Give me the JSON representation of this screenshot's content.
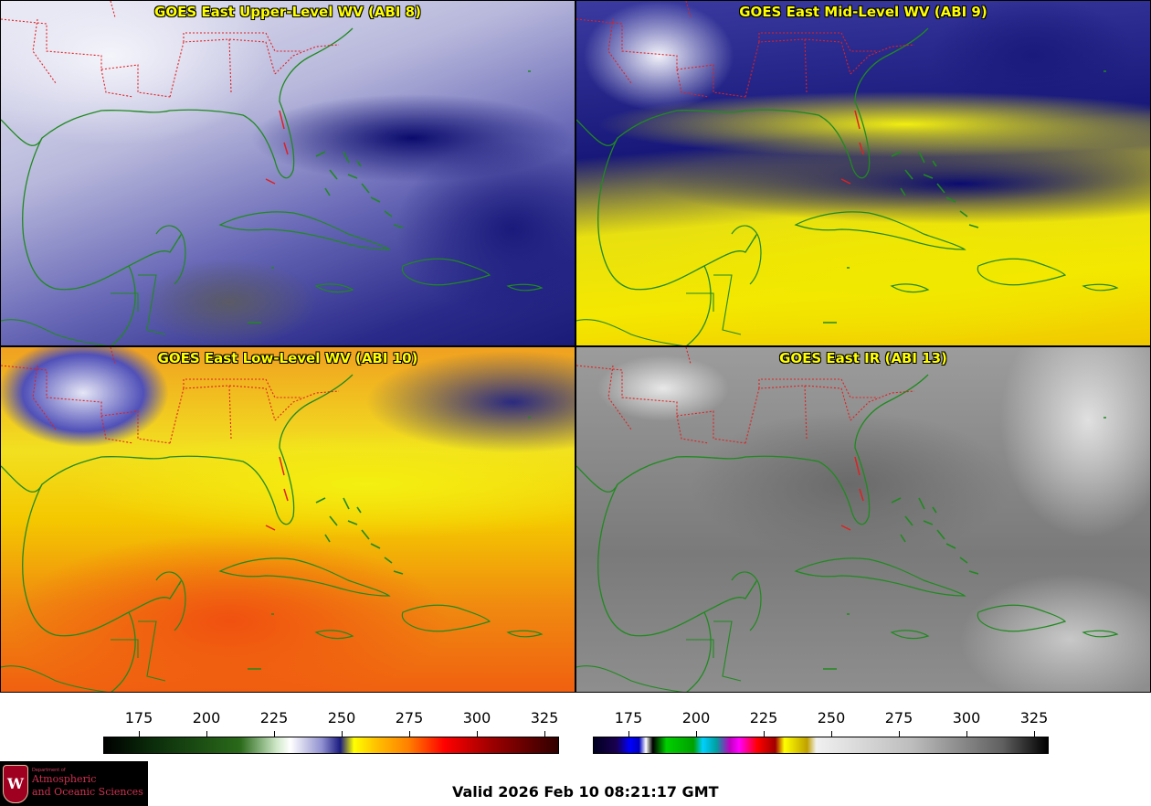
{
  "panels": [
    {
      "title": "GOES East Upper-Level WV (ABI 8)"
    },
    {
      "title": "GOES East Mid-Level WV (ABI 9)"
    },
    {
      "title": "GOES East Low-Level WV (ABI 10)"
    },
    {
      "title": "GOES East IR (ABI 13)"
    }
  ],
  "colorbars": {
    "wv": {
      "ticks": [
        "175",
        "200",
        "225",
        "250",
        "275",
        "300",
        "325"
      ]
    },
    "ir": {
      "ticks": [
        "175",
        "200",
        "225",
        "250",
        "275",
        "300",
        "325"
      ]
    }
  },
  "logo": {
    "crest": "W",
    "dept": "Department of",
    "line1": "Atmospheric",
    "line2": "and Oceanic Sciences"
  },
  "valid_time": "Valid 2026 Feb 10 08:21:17 GMT",
  "colors": {
    "coastline": "#1f8a1f",
    "state_borders": "#e02020",
    "title_text": "#ffff00"
  }
}
